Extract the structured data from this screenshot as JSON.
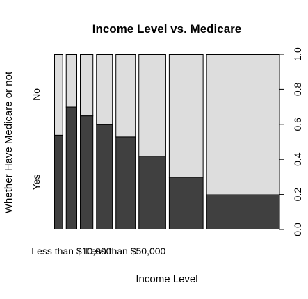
{
  "chart_data": {
    "type": "bar",
    "subtype": "spineplot",
    "title": "Income Level vs. Medicare",
    "xlabel": "Income Level",
    "ylabel": "Whether Have Medicare or not",
    "ylim": [
      0,
      1
    ],
    "y_ticks": [
      "0.0",
      "0.2",
      "0.4",
      "0.6",
      "0.8",
      "1.0"
    ],
    "y_tick_values": [
      0,
      0.2,
      0.4,
      0.6,
      0.8,
      1.0
    ],
    "levels": [
      "Yes",
      "No"
    ],
    "colors": {
      "Yes": "#404040",
      "No": "#dddddd"
    },
    "x_tick_labels": [
      "Less than $10,000",
      "Less than $50,000"
    ],
    "x_tick_label_category_index": [
      1,
      4
    ],
    "categories": [
      "1",
      "2",
      "3",
      "4",
      "5",
      "6",
      "7",
      "8"
    ],
    "category_share": [
      0.043,
      0.055,
      0.065,
      0.081,
      0.098,
      0.134,
      0.168,
      0.356
    ],
    "series": [
      {
        "name": "Yes",
        "values": [
          0.54,
          0.7,
          0.65,
          0.6,
          0.53,
          0.42,
          0.3,
          0.2
        ]
      },
      {
        "name": "No",
        "values": [
          0.46,
          0.3,
          0.35,
          0.4,
          0.47,
          0.58,
          0.7,
          0.8
        ]
      }
    ]
  }
}
